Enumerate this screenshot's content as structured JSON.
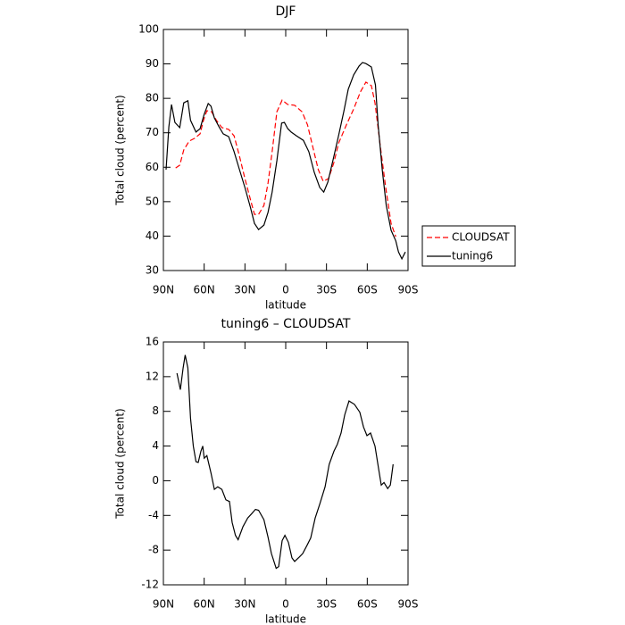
{
  "chart_data": [
    {
      "type": "line",
      "title": "DJF",
      "xlabel": "latitude",
      "ylabel": "Total cloud (percent)",
      "xlim": [
        90,
        -90
      ],
      "xticks": [
        {
          "value": 90,
          "label": "90N"
        },
        {
          "value": 60,
          "label": "60N"
        },
        {
          "value": 30,
          "label": "30N"
        },
        0,
        {
          "value": -30,
          "label": "30S"
        },
        {
          "value": -60,
          "label": "60S"
        },
        {
          "value": -90,
          "label": "90S"
        }
      ],
      "ylim": [
        30,
        100
      ],
      "yticks": [
        30,
        40,
        50,
        60,
        70,
        80,
        90,
        100
      ],
      "legend": "right",
      "series": [
        {
          "name": "CLOUDSAT",
          "color": "#ff0000",
          "style": "dashed",
          "x": [
            81,
            78,
            75,
            71,
            67,
            63,
            60.5,
            58,
            54.5,
            51,
            47,
            42,
            38,
            34,
            30,
            26,
            23,
            20,
            16,
            13,
            10,
            6.5,
            2.6,
            -1.5,
            -6.6,
            -12,
            -16,
            -20,
            -24,
            -27.6,
            -31.5,
            -35.5,
            -39,
            -44.7,
            -50,
            -55,
            -59,
            -63,
            -65.7,
            -69.7,
            -73.6,
            -77.5,
            -81
          ],
          "values": [
            59.8,
            60.6,
            65,
            67.6,
            68.4,
            69.7,
            73.6,
            76.4,
            76.1,
            73.6,
            71.5,
            71,
            69.1,
            63.2,
            56.7,
            50.7,
            46.3,
            46.3,
            48.9,
            55.4,
            64.5,
            76.1,
            79.5,
            78.2,
            78,
            76.1,
            72.3,
            65.8,
            59.3,
            55.9,
            56.7,
            61.4,
            67.1,
            72.3,
            76.9,
            81.9,
            84.7,
            83.7,
            78.7,
            65.8,
            54.1,
            43.7,
            39.8
          ]
        },
        {
          "name": "tuning6",
          "color": "#000000",
          "style": "solid",
          "x": [
            88,
            86,
            84,
            81.5,
            78,
            75,
            72,
            70,
            66,
            63,
            60,
            57,
            55,
            52.5,
            49,
            46,
            42,
            38,
            34,
            30,
            26,
            23,
            20,
            16,
            13,
            10,
            6.5,
            3,
            1,
            -1.5,
            -4,
            -8,
            -13,
            -17,
            -21,
            -25,
            -28,
            -31,
            -35.5,
            -39,
            -42.7,
            -46,
            -50,
            -54,
            -56.5,
            -59,
            -63,
            -66,
            -68,
            -71,
            -74,
            -77.5,
            -81,
            -83,
            -85.5,
            -88
          ],
          "values": [
            59.3,
            71.7,
            78.2,
            73,
            71.5,
            78.7,
            79.3,
            73.6,
            70.2,
            71.2,
            75.4,
            78.5,
            77.7,
            74.3,
            71.7,
            69.7,
            68.9,
            64.5,
            59.3,
            54.1,
            48.4,
            43.7,
            41.9,
            43.2,
            46.9,
            52.8,
            61.9,
            72.8,
            73,
            71.2,
            70.2,
            69.1,
            67.8,
            64.5,
            58.5,
            54.1,
            52.8,
            55.7,
            63.2,
            69.4,
            76.1,
            82.6,
            86.8,
            89.4,
            90.4,
            90.1,
            89.1,
            83.9,
            72.3,
            59.3,
            48.9,
            41.7,
            38.6,
            35.4,
            33.4,
            35.4
          ]
        }
      ]
    },
    {
      "type": "line",
      "title": "tuning6 – CLOUDSAT",
      "xlabel": "latitude",
      "ylabel": "Total cloud (percent)",
      "xlim": [
        90,
        -90
      ],
      "xticks": [
        {
          "value": 90,
          "label": "90N"
        },
        {
          "value": 60,
          "label": "60N"
        },
        {
          "value": 30,
          "label": "30N"
        },
        0,
        {
          "value": -30,
          "label": "30S"
        },
        {
          "value": -60,
          "label": "60S"
        },
        {
          "value": -90,
          "label": "90S"
        }
      ],
      "ylim": [
        -12,
        16
      ],
      "yticks": [
        -12,
        -8,
        -4,
        0,
        4,
        8,
        12,
        16
      ],
      "series": [
        {
          "color": "#000000",
          "style": "solid",
          "x": [
            80,
            77.5,
            75.5,
            74,
            72,
            70,
            68,
            66,
            64.4,
            62.4,
            61,
            60,
            58,
            55,
            52.5,
            50,
            47,
            44,
            41.4,
            39.4,
            37,
            35,
            31.5,
            28,
            25,
            22.3,
            20,
            16,
            13,
            10.5,
            7,
            5.2,
            2.6,
            0.6,
            -2,
            -4.6,
            -6.6,
            -10,
            -12.5,
            -15.8,
            -18.4,
            -21.7,
            -25,
            -29,
            -32,
            -35.5,
            -38,
            -40.7,
            -43.4,
            -46.6,
            -50.6,
            -54.5,
            -57.2,
            -59.8,
            -62.4,
            -65.7,
            -68.3,
            -70.3,
            -72.3,
            -75,
            -77,
            -79
          ],
          "values": [
            12.4,
            10.5,
            13,
            14.5,
            13,
            7.2,
            4,
            2.2,
            2.1,
            3.4,
            4,
            2.6,
            2.9,
            0.9,
            -1,
            -0.7,
            -1,
            -2.2,
            -2.4,
            -4.8,
            -6.3,
            -6.8,
            -5.3,
            -4.3,
            -3.8,
            -3.3,
            -3.4,
            -4.5,
            -6.5,
            -8.4,
            -10.1,
            -9.9,
            -6.9,
            -6.3,
            -7.1,
            -8.9,
            -9.3,
            -8.8,
            -8.4,
            -7.4,
            -6.6,
            -4.3,
            -2.7,
            -0.7,
            1.9,
            3.4,
            4.2,
            5.5,
            7.6,
            9.2,
            8.8,
            7.9,
            6.2,
            5.2,
            5.5,
            4,
            1.4,
            -0.5,
            -0.2,
            -0.9,
            -0.5,
            1.9
          ]
        }
      ]
    }
  ]
}
